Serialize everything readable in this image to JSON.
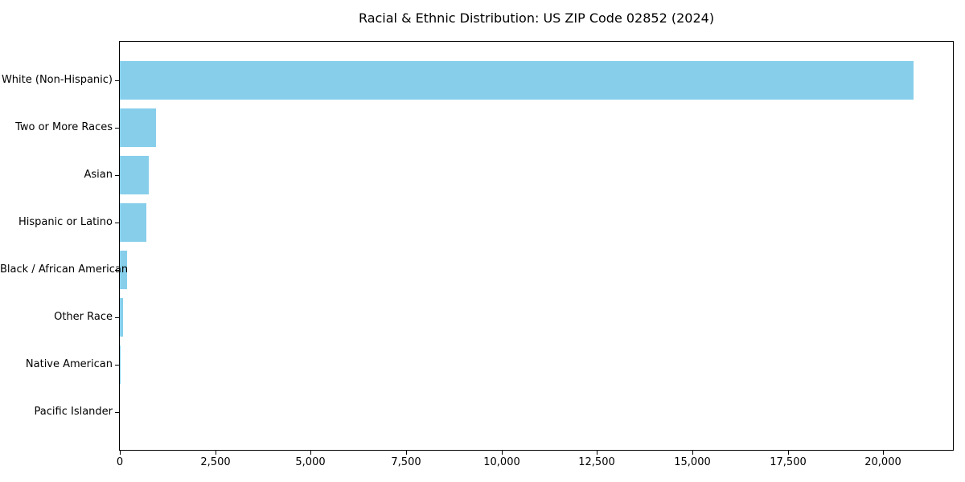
{
  "chart_data": {
    "type": "bar",
    "orientation": "horizontal",
    "title": "Racial & Ethnic Distribution: US ZIP Code 02852 (2024)",
    "xlabel": "",
    "ylabel": "",
    "categories": [
      "White (Non-Hispanic)",
      "Two or More Races",
      "Asian",
      "Hispanic or Latino",
      "Black / African American",
      "Other Race",
      "Native American",
      "Pacific Islander"
    ],
    "values": [
      20800,
      950,
      760,
      700,
      200,
      85,
      20,
      0
    ],
    "xlim": [
      0,
      21830
    ],
    "x_ticks": [
      0,
      2500,
      5000,
      7500,
      10000,
      12500,
      15000,
      17500,
      20000
    ],
    "x_tick_labels": [
      "0",
      "2,500",
      "5,000",
      "7,500",
      "10,000",
      "12,500",
      "15,000",
      "17,500",
      "20,000"
    ],
    "bar_color": "#87CEEB",
    "axis_color": "#000000",
    "background_color": "#ffffff",
    "grid": false,
    "legend": false
  }
}
